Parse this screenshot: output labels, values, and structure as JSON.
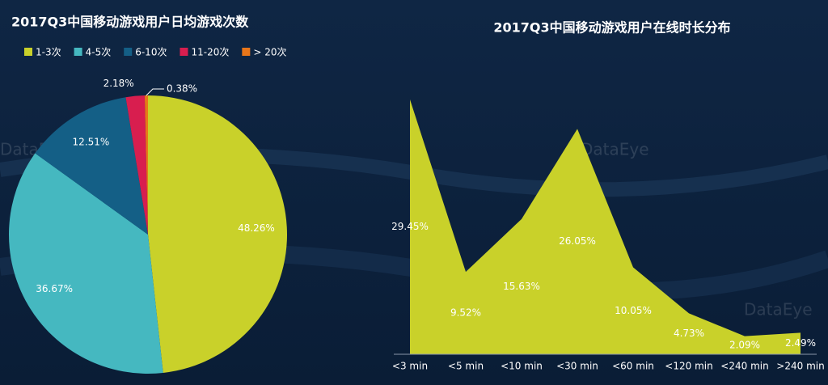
{
  "chart_data": [
    {
      "type": "pie",
      "title": "2017Q3中国移动游戏用户日均游戏次数",
      "categories": [
        "1-3次",
        "4-5次",
        "6-10次",
        "11-20次",
        "> 20次"
      ],
      "values": [
        48.26,
        36.67,
        12.51,
        2.18,
        0.38
      ],
      "value_labels": [
        "48.26%",
        "36.67%",
        "12.51%",
        "2.18%",
        "0.38%"
      ],
      "colors": [
        "#c9d12a",
        "#45b8c0",
        "#145f86",
        "#d81e4f",
        "#e8761a"
      ],
      "legend": "top-left"
    },
    {
      "type": "area",
      "title": "2017Q3中国移动游戏用户在线时长分布",
      "categories": [
        "<3 min",
        "<5 min",
        "<10 min",
        "<30 min",
        "<60 min",
        "<120 min",
        "<240 min",
        ">240 min"
      ],
      "values": [
        29.45,
        9.52,
        15.63,
        26.05,
        10.05,
        4.73,
        2.09,
        2.49
      ],
      "value_labels": [
        "29.45%",
        "9.52%",
        "15.63%",
        "26.05%",
        "10.05%",
        "4.73%",
        "2.09%",
        "2.49%"
      ],
      "color": "#c9d12a"
    }
  ],
  "watermark": "DataEye"
}
